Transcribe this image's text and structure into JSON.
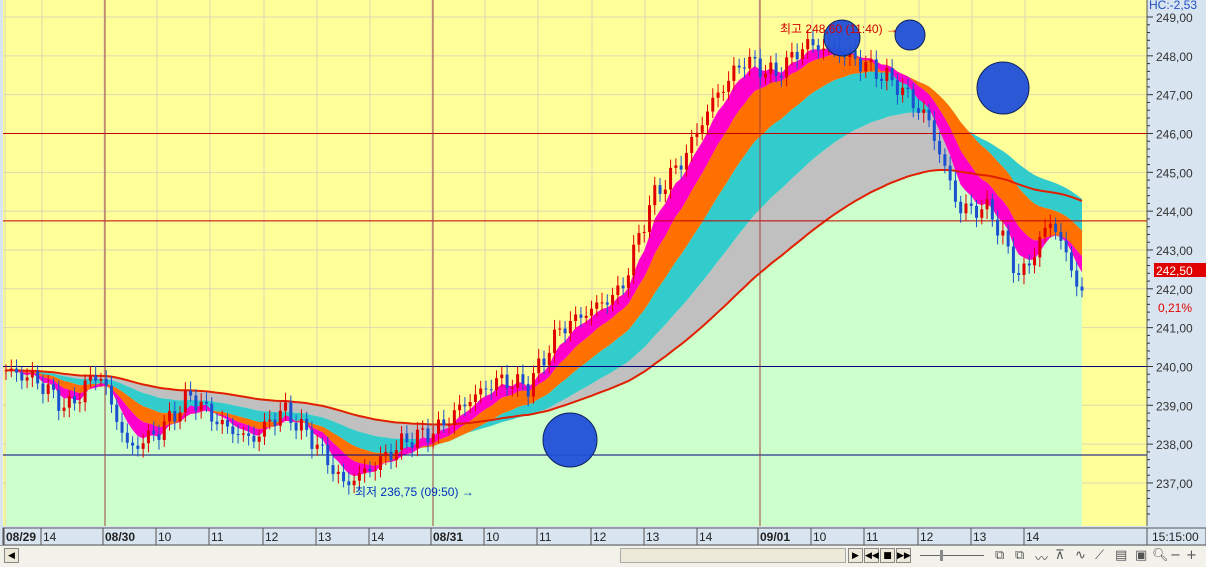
{
  "chart_data": {
    "type": "candlestick",
    "y_ticks": [
      "249,00",
      "248,00",
      "247,00",
      "246,00",
      "245,00",
      "244,00",
      "243,00",
      "242,00",
      "241,00",
      "240,00",
      "239,00",
      "238,00",
      "237,00"
    ],
    "ylim": [
      236.6,
      249.4
    ],
    "x_labels": [
      {
        "t": "08/29",
        "bold": true
      },
      {
        "t": "14"
      },
      {
        "t": "08/30",
        "bold": true
      },
      {
        "t": "10"
      },
      {
        "t": "11"
      },
      {
        "t": "12"
      },
      {
        "t": "13"
      },
      {
        "t": "14"
      },
      {
        "t": "08/31",
        "bold": true
      },
      {
        "t": "10"
      },
      {
        "t": "11"
      },
      {
        "t": "12"
      },
      {
        "t": "13"
      },
      {
        "t": "14"
      },
      {
        "t": "09/01",
        "bold": true
      },
      {
        "t": "10"
      },
      {
        "t": "11"
      },
      {
        "t": "12"
      },
      {
        "t": "13"
      },
      {
        "t": "14"
      }
    ],
    "time_readout": "15:15:00",
    "price_path": [
      239.9,
      239.65,
      238.9,
      239.9,
      237.85,
      238.35,
      239.25,
      238.5,
      238.1,
      238.9,
      238.1,
      236.95,
      237.45,
      238.1,
      238.35,
      239.1,
      239.65,
      239.5,
      240.95,
      241.45,
      241.95,
      244.3,
      245.3,
      246.85,
      247.9,
      247.5,
      248.3,
      248.15,
      247.75,
      247.25,
      246.35,
      244.05,
      244.05,
      242.25,
      243.8,
      241.85
    ],
    "horizontal_lines": [
      {
        "price": 246.0,
        "color": "#c00000"
      },
      {
        "price": 243.75,
        "color": "#c00000"
      },
      {
        "price": 240.0,
        "color": "#000080"
      },
      {
        "price": 237.72,
        "color": "#000080"
      }
    ],
    "annotations": {
      "high": "최고 248,60 (11:40)",
      "low": "최저 236,75 (09:50)"
    },
    "current_price": "242,50",
    "change_pct": "0,21%",
    "header_readout": "HC:-2,53",
    "colors": {
      "bg": "#ffff99",
      "fill_green": "#ccffcc",
      "up": "#e00000",
      "down": "#1a50d0",
      "ma_long": "#e02000",
      "band_orange": "#ff7000",
      "band_cyan": "#33cccc",
      "band_gray": "#c0c0c0",
      "circle": "#2050d8"
    }
  }
}
